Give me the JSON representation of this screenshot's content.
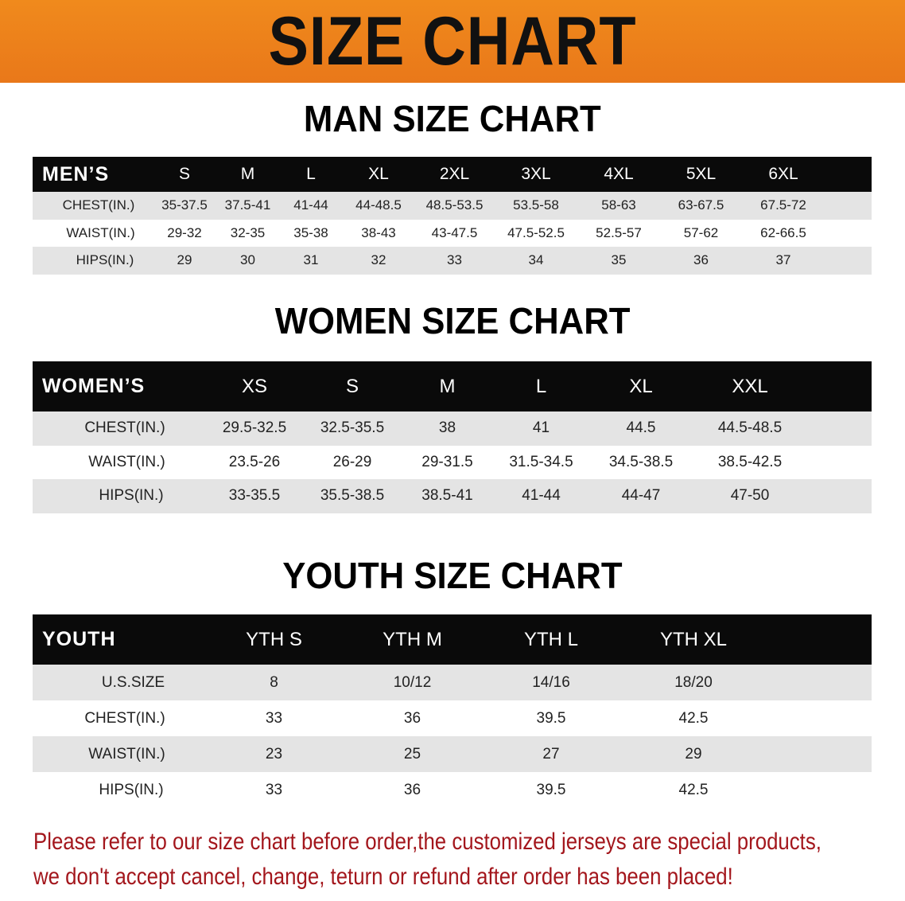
{
  "banner": {
    "title": "SIZE CHART"
  },
  "men": {
    "title": "MAN SIZE CHART",
    "header": [
      "MEN’S",
      "S",
      "M",
      "L",
      "XL",
      "2XL",
      "3XL",
      "4XL",
      "5XL",
      "6XL"
    ],
    "rows": [
      [
        "CHEST(IN.)",
        "35-37.5",
        "37.5-41",
        "41-44",
        "44-48.5",
        "48.5-53.5",
        "53.5-58",
        "58-63",
        "63-67.5",
        "67.5-72"
      ],
      [
        "WAIST(IN.)",
        "29-32",
        "32-35",
        "35-38",
        "38-43",
        "43-47.5",
        "47.5-52.5",
        "52.5-57",
        "57-62",
        "62-66.5"
      ],
      [
        "HIPS(IN.)",
        "29",
        "30",
        "31",
        "32",
        "33",
        "34",
        "35",
        "36",
        "37"
      ]
    ]
  },
  "women": {
    "title": "WOMEN SIZE CHART",
    "header": [
      "WOMEN’S",
      "XS",
      "S",
      "M",
      "L",
      "XL",
      "XXL"
    ],
    "rows": [
      [
        "CHEST(IN.)",
        "29.5-32.5",
        "32.5-35.5",
        "38",
        "41",
        "44.5",
        "44.5-48.5"
      ],
      [
        "WAIST(IN.)",
        "23.5-26",
        "26-29",
        "29-31.5",
        "31.5-34.5",
        "34.5-38.5",
        "38.5-42.5"
      ],
      [
        "HIPS(IN.)",
        "33-35.5",
        "35.5-38.5",
        "38.5-41",
        "41-44",
        "44-47",
        "47-50"
      ]
    ]
  },
  "youth": {
    "title": "YOUTH SIZE CHART",
    "header": [
      "YOUTH",
      "YTH S",
      "YTH M",
      "YTH L",
      "YTH XL"
    ],
    "rows": [
      [
        "U.S.SIZE",
        "8",
        "10/12",
        "14/16",
        "18/20"
      ],
      [
        "CHEST(IN.)",
        "33",
        "36",
        "39.5",
        "42.5"
      ],
      [
        "WAIST(IN.)",
        "23",
        "25",
        "27",
        "29"
      ],
      [
        "HIPS(IN.)",
        "33",
        "36",
        "39.5",
        "42.5"
      ]
    ]
  },
  "note": {
    "line1": "Please refer to our size chart before order,the customized jerseys are special products,",
    "line2": "we don't accept cancel, change, teturn or refund after order has been placed!"
  },
  "colors": {
    "banner": "#ee8219",
    "header_row": "#0a0a0a",
    "shaded_row": "#e4e4e4",
    "note": "#a3161c"
  }
}
